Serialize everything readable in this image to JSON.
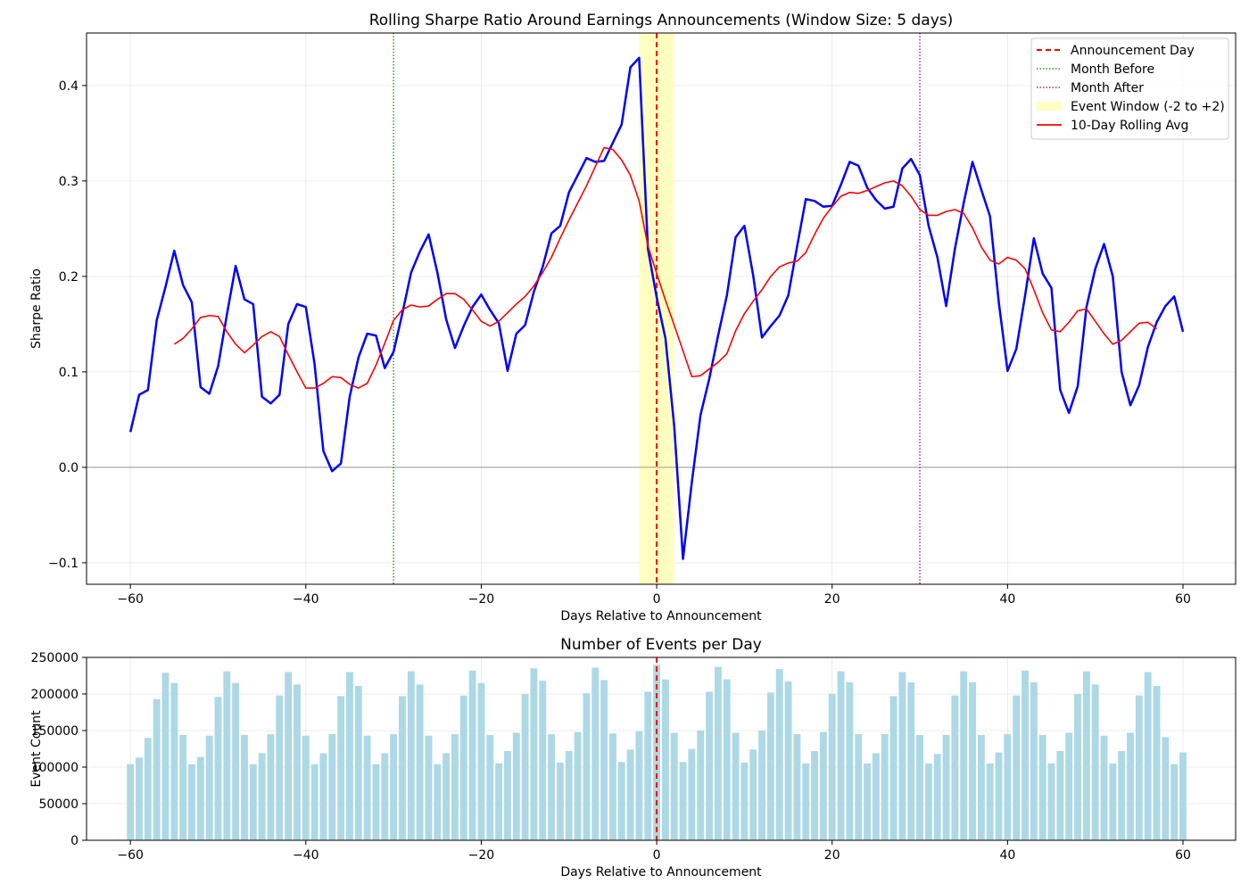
{
  "chart_data": [
    {
      "type": "line",
      "title": "Rolling Sharpe Ratio Around Earnings Announcements (Window Size: 5 days)",
      "xlabel": "Days Relative to Announcement",
      "ylabel": "Sharpe Ratio",
      "xlim": [
        -65,
        66
      ],
      "ylim": [
        -0.1225,
        0.455
      ],
      "xticks": [
        -60,
        -40,
        -20,
        0,
        20,
        40,
        60
      ],
      "xtick_labels": [
        "−60",
        "−40",
        "−20",
        "0",
        "20",
        "40",
        "60"
      ],
      "yticks": [
        -0.1,
        0.0,
        0.1,
        0.2,
        0.3,
        0.4
      ],
      "ytick_labels": [
        "−0.1",
        "0.0",
        "0.1",
        "0.2",
        "0.3",
        "0.4"
      ],
      "grid": true,
      "legend_position": "top-right",
      "event_window": {
        "start": -2,
        "end": 2,
        "label": "Event Window (-2 to +2)",
        "color": "#ffffc0"
      },
      "vlines": [
        {
          "x": 0,
          "label": "Announcement Day",
          "color": "#ff0000",
          "style": "dashed"
        },
        {
          "x": -30,
          "label": "Month Before",
          "color": "#008000",
          "style": "dotted"
        },
        {
          "x": 30,
          "label": "Month After",
          "color": "#800080",
          "style": "dotted"
        }
      ],
      "series": [
        {
          "name": "",
          "color": "#0000ff",
          "x_start": -60,
          "values": [
            0.037,
            0.076,
            0.081,
            0.154,
            0.189,
            0.227,
            0.191,
            0.173,
            0.084,
            0.077,
            0.106,
            0.16,
            0.211,
            0.176,
            0.171,
            0.074,
            0.067,
            0.076,
            0.15,
            0.171,
            0.168,
            0.108,
            0.017,
            -0.004,
            0.004,
            0.074,
            0.115,
            0.14,
            0.138,
            0.104,
            0.121,
            0.161,
            0.204,
            0.226,
            0.244,
            0.204,
            0.155,
            0.125,
            0.148,
            0.168,
            0.181,
            0.165,
            0.151,
            0.101,
            0.14,
            0.149,
            0.184,
            0.21,
            0.245,
            0.253,
            0.288,
            0.306,
            0.324,
            0.32,
            0.321,
            0.34,
            0.359,
            0.419,
            0.429,
            0.229,
            0.178,
            0.135,
            0.043,
            -0.096,
            -0.016,
            0.055,
            0.093,
            0.138,
            0.18,
            0.241,
            0.253,
            0.201,
            0.136,
            0.148,
            0.159,
            0.18,
            0.231,
            0.281,
            0.279,
            0.273,
            0.274,
            0.296,
            0.32,
            0.316,
            0.293,
            0.28,
            0.271,
            0.273,
            0.313,
            0.323,
            0.306,
            0.253,
            0.22,
            0.169,
            0.229,
            0.277,
            0.32,
            0.291,
            0.263,
            0.173,
            0.101,
            0.124,
            0.18,
            0.24,
            0.203,
            0.188,
            0.081,
            0.057,
            0.085,
            0.168,
            0.208,
            0.234,
            0.2,
            0.1,
            0.065,
            0.086,
            0.126,
            0.152,
            0.169,
            0.179,
            0.142
          ]
        },
        {
          "name": "10-Day Rolling Avg",
          "color": "#ff0000",
          "x_start": -55,
          "values": [
            0.129,
            0.135,
            0.145,
            0.157,
            0.159,
            0.158,
            0.142,
            0.129,
            0.12,
            0.128,
            0.137,
            0.142,
            0.137,
            0.118,
            0.1,
            0.083,
            0.083,
            0.088,
            0.095,
            0.094,
            0.087,
            0.083,
            0.088,
            0.107,
            0.13,
            0.154,
            0.165,
            0.17,
            0.168,
            0.169,
            0.176,
            0.182,
            0.182,
            0.176,
            0.165,
            0.153,
            0.148,
            0.153,
            0.162,
            0.171,
            0.179,
            0.19,
            0.204,
            0.22,
            0.24,
            0.259,
            0.277,
            0.295,
            0.315,
            0.335,
            0.333,
            0.322,
            0.306,
            0.279,
            0.232,
            0.203,
            0.175,
            0.149,
            0.122,
            0.095,
            0.096,
            0.103,
            0.11,
            0.119,
            0.143,
            0.161,
            0.174,
            0.186,
            0.2,
            0.21,
            0.214,
            0.216,
            0.225,
            0.244,
            0.261,
            0.273,
            0.284,
            0.288,
            0.287,
            0.29,
            0.294,
            0.298,
            0.3,
            0.295,
            0.284,
            0.27,
            0.264,
            0.264,
            0.268,
            0.27,
            0.266,
            0.251,
            0.231,
            0.217,
            0.213,
            0.22,
            0.217,
            0.208,
            0.186,
            0.162,
            0.144,
            0.142,
            0.152,
            0.164,
            0.166,
            0.153,
            0.14,
            0.129,
            0.133,
            0.142,
            0.151,
            0.152,
            0.145
          ]
        }
      ]
    },
    {
      "type": "bar",
      "title": "Number of Events per Day",
      "xlabel": "Days Relative to Announcement",
      "ylabel": "Event Count",
      "xlim": [
        -65,
        66
      ],
      "ylim": [
        0,
        250000
      ],
      "xticks": [
        -60,
        -40,
        -20,
        0,
        20,
        40,
        60
      ],
      "xtick_labels": [
        "−60",
        "−40",
        "−20",
        "0",
        "20",
        "40",
        "60"
      ],
      "yticks": [
        0,
        50000,
        100000,
        150000,
        200000,
        250000
      ],
      "ytick_labels": [
        "0",
        "50000",
        "100000",
        "150000",
        "200000",
        "250000"
      ],
      "grid": true,
      "color": "#add8e6",
      "x_start": -60,
      "values": [
        104000,
        113000,
        140000,
        193000,
        229000,
        215000,
        144000,
        104000,
        114000,
        143000,
        196000,
        231000,
        215000,
        144000,
        104000,
        119000,
        145000,
        198000,
        230000,
        213000,
        143000,
        104000,
        119000,
        145000,
        197000,
        230000,
        211000,
        143000,
        104000,
        119000,
        145000,
        197000,
        231000,
        213000,
        143000,
        104000,
        119000,
        145000,
        198000,
        232000,
        215000,
        144000,
        105000,
        122000,
        147000,
        200000,
        235000,
        218000,
        145000,
        106000,
        122000,
        148000,
        201000,
        236000,
        219000,
        146000,
        107000,
        124000,
        149000,
        203000,
        240000,
        220000,
        147000,
        107000,
        125000,
        150000,
        203000,
        237000,
        220000,
        147000,
        106000,
        124000,
        150000,
        202000,
        234000,
        217000,
        145000,
        105000,
        122000,
        148000,
        200000,
        231000,
        216000,
        145000,
        105000,
        119000,
        145000,
        197000,
        230000,
        216000,
        144000,
        105000,
        118000,
        144000,
        198000,
        231000,
        216000,
        144000,
        105000,
        120000,
        145000,
        198000,
        232000,
        216000,
        144000,
        105000,
        122000,
        147000,
        200000,
        231000,
        213000,
        143000,
        105000,
        122000,
        147000,
        198000,
        230000,
        211000,
        141000,
        104000,
        120000
      ]
    }
  ]
}
